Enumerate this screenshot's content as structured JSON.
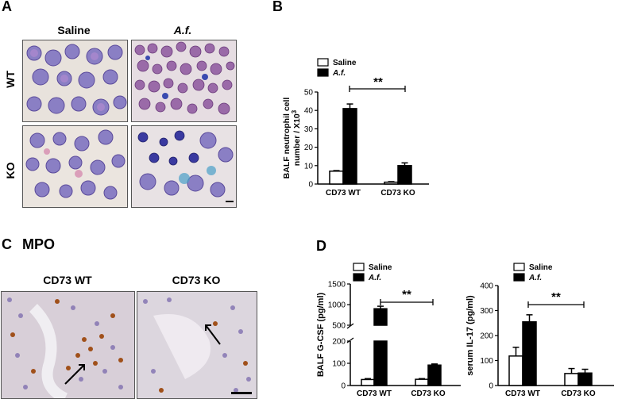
{
  "panels": {
    "A": {
      "letter": "A",
      "col_labels": [
        "Saline",
        "A.f."
      ],
      "row_labels": [
        "WT",
        "KO"
      ]
    },
    "B": {
      "letter": "B"
    },
    "C": {
      "letter": "C",
      "stain": "MPO",
      "col_labels": [
        "CD73 WT",
        "CD73 KO"
      ]
    },
    "D": {
      "letter": "D"
    }
  },
  "colors": {
    "saline": "#ffffff",
    "af": "#000000",
    "stroke": "#000000"
  },
  "chart_data": [
    {
      "id": "B",
      "type": "bar",
      "categories": [
        "CD73 WT",
        "CD73 KO"
      ],
      "series": [
        {
          "name": "Saline",
          "values": [
            7,
            1
          ],
          "errors": [
            0.3,
            0.3
          ]
        },
        {
          "name": "A.f.",
          "values": [
            41,
            10
          ],
          "errors": [
            2.5,
            1.5
          ]
        }
      ],
      "ylabel_line1": "BALF neutrophil cell",
      "ylabel_line2": "number / X10",
      "ylabel_sup": "3",
      "ylim": [
        0,
        50
      ],
      "yticks": [
        "0",
        "10",
        "20",
        "30",
        "40",
        "50"
      ],
      "significance": "**",
      "legend": "top-left"
    },
    {
      "id": "D1",
      "type": "bar",
      "categories": [
        "CD73 WT",
        "CD73 KO"
      ],
      "series": [
        {
          "name": "Saline",
          "values": [
            27,
            28
          ],
          "errors": [
            4,
            3
          ]
        },
        {
          "name": "A.f.",
          "values": [
            900,
            92
          ],
          "errors": [
            60,
            5
          ]
        }
      ],
      "ylabel": "BALF G-CSF (pg/ml)",
      "axis_break": true,
      "ylim_lower": [
        0,
        200
      ],
      "ylim_upper": [
        500,
        1500
      ],
      "yticks": [
        "0",
        "100",
        "200",
        "500",
        "1000",
        "1500"
      ],
      "significance": "**",
      "legend": "top-left"
    },
    {
      "id": "D2",
      "type": "bar",
      "categories": [
        "CD73 WT",
        "CD73 KO"
      ],
      "series": [
        {
          "name": "Saline",
          "values": [
            118,
            48
          ],
          "errors": [
            35,
            20
          ]
        },
        {
          "name": "A.f.",
          "values": [
            255,
            50
          ],
          "errors": [
            28,
            15
          ]
        }
      ],
      "ylabel": "serum IL-17 (pg/ml)",
      "ylim": [
        0,
        400
      ],
      "yticks": [
        "0",
        "100",
        "200",
        "300",
        "400"
      ],
      "significance": "**",
      "legend": "top-left"
    }
  ]
}
